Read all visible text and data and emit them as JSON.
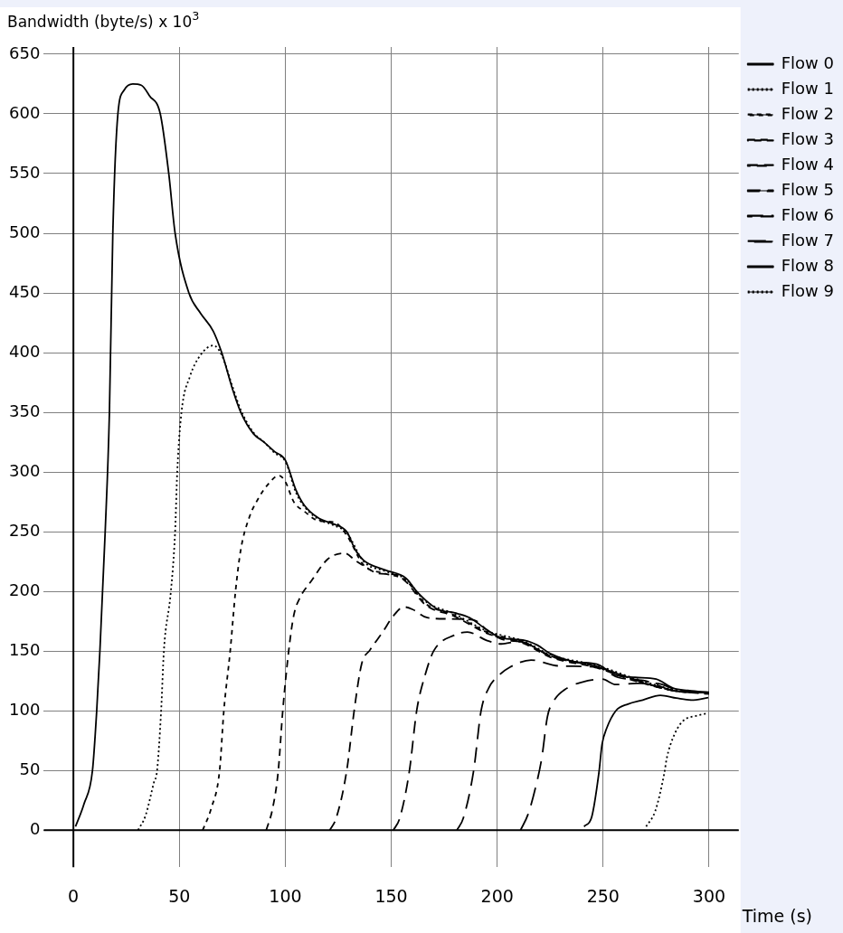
{
  "chart_data": {
    "type": "line",
    "xlabel": "Time (s)",
    "ylabel": "Bandwidth (byte/s) x 10$^{3}$",
    "xlim": [
      -14,
      314
    ],
    "ylim": [
      -31,
      656
    ],
    "xticks": [
      0,
      50,
      100,
      150,
      200,
      250,
      300
    ],
    "yticks": [
      0,
      50,
      100,
      150,
      200,
      250,
      300,
      350,
      400,
      450,
      500,
      550,
      600,
      650
    ],
    "grid": true,
    "legend": "top right",
    "marker": "none",
    "series": [
      {
        "name": "Flow 0",
        "color": "#000000",
        "line_style": "solid",
        "x": [
          1,
          5,
          9,
          11,
          12.5,
          15,
          17,
          18.6,
          21,
          24,
          28,
          32,
          36,
          41,
          45,
          48,
          54.5,
          60,
          66,
          70,
          75,
          79,
          85,
          90,
          95,
          100,
          105,
          109,
          116,
          122,
          129,
          133,
          137,
          147,
          157,
          162,
          166,
          172,
          180,
          187,
          195,
          202,
          213,
          219,
          225,
          237,
          247,
          256,
          265,
          275,
          283,
          290,
          300
        ],
        "values": [
          3,
          22,
          50,
          100,
          150,
          250,
          350,
          500,
          600,
          620,
          625,
          624,
          615,
          600,
          550,
          500,
          450,
          433,
          418,
          400,
          370,
          350,
          332,
          325,
          317,
          310,
          285,
          272,
          261,
          257,
          250,
          235,
          226,
          218,
          211,
          200,
          193,
          185,
          182,
          178,
          168,
          161,
          159,
          155,
          148,
          141,
          139,
          130,
          128,
          126.5,
          119,
          117,
          115.5
        ]
      },
      {
        "name": "Flow 1",
        "color": "#000000",
        "line_style": "dotted",
        "x": [
          30.5,
          34,
          38,
          39.5,
          41.4,
          42.7,
          46,
          48,
          49,
          51,
          55,
          60,
          66,
          70,
          75,
          79,
          85,
          90,
          95,
          100,
          105,
          109,
          116,
          122,
          129,
          137,
          147,
          157,
          166,
          180,
          195,
          213,
          225,
          247,
          265,
          283,
          300
        ],
        "values": [
          0,
          12,
          40,
          50,
          100,
          150,
          200,
          250,
          300,
          350,
          380,
          398,
          406,
          398,
          372,
          352,
          333,
          325,
          316,
          309,
          283,
          271,
          260,
          256,
          249,
          225,
          217,
          210,
          192,
          181,
          167,
          158,
          147,
          138,
          127,
          118,
          115
        ]
      },
      {
        "name": "Flow 2",
        "color": "#000000",
        "line_style": "dashed",
        "x": [
          61,
          65,
          69,
          71,
          74,
          76.5,
          79,
          83,
          87,
          92,
          97,
          100,
          104,
          109,
          116,
          123,
          129,
          137,
          147,
          157,
          166,
          180,
          195,
          213,
          225,
          247,
          265,
          283,
          300
        ],
        "values": [
          0,
          18,
          50,
          100,
          150,
          200,
          235,
          262,
          277,
          290,
          297,
          292,
          275,
          267,
          259,
          258,
          247,
          222,
          215,
          209,
          190,
          180,
          166,
          157,
          146,
          137,
          126,
          117,
          115
        ]
      },
      {
        "name": "Flow 3",
        "color": "#000000",
        "line_style": "dashed",
        "x": [
          91,
          94,
          96.7,
          98.8,
          101.6,
          104,
          107,
          112,
          120,
          128,
          133,
          137.4,
          144,
          151.7,
          157,
          166,
          180,
          195,
          213,
          225,
          247,
          265,
          283,
          300
        ],
        "values": [
          0,
          18,
          50,
          100,
          150,
          180,
          195,
          208,
          227,
          232,
          226,
          221,
          215,
          214,
          208,
          189,
          179,
          165,
          156,
          145,
          136,
          125,
          117,
          114
        ]
      },
      {
        "name": "Flow 4",
        "color": "#000000",
        "line_style": "dashed",
        "x": [
          121,
          124,
          129,
          132.5,
          136,
          140,
          146,
          151,
          156,
          160,
          167,
          176,
          189,
          195,
          202,
          213,
          225,
          247,
          265,
          283,
          300
        ],
        "values": [
          0,
          10,
          50,
          100,
          139,
          151,
          166,
          179.5,
          187,
          185,
          178,
          177,
          176,
          168,
          160,
          157,
          146,
          137,
          126,
          117,
          115
        ]
      },
      {
        "name": "Flow 5",
        "color": "#000000",
        "line_style": "dashed",
        "x": [
          151,
          154,
          158.6,
          162,
          166,
          170,
          180,
          186,
          195,
          202,
          210,
          213,
          225,
          247,
          265,
          283,
          300
        ],
        "values": [
          0,
          10,
          50,
          100,
          130,
          150,
          163.5,
          166,
          159,
          156,
          158,
          157,
          146,
          137,
          126,
          117,
          115
        ]
      },
      {
        "name": "Flow 6",
        "color": "#000000",
        "line_style": "dashed",
        "x": [
          181,
          184,
          188.9,
          192.4,
          196,
          201,
          206,
          216,
          229,
          247,
          257,
          270,
          283,
          300
        ],
        "values": [
          0,
          10,
          50,
          100,
          119,
          130,
          136.5,
          142.5,
          137.6,
          136.6,
          128,
          125,
          117,
          115
        ]
      },
      {
        "name": "Flow 7",
        "color": "#000000",
        "line_style": "dashed",
        "x": [
          211,
          214.5,
          218,
          221,
          223.7,
          226.6,
          233,
          240,
          249.5,
          256,
          266,
          275,
          286,
          300
        ],
        "values": [
          0,
          13,
          35,
          60,
          95,
          108,
          119,
          124,
          126.5,
          122,
          123,
          123,
          116.7,
          115
        ]
      },
      {
        "name": "Flow 8",
        "color": "#000000",
        "line_style": "solid",
        "x": [
          241,
          244.6,
          248,
          249.5,
          251.6,
          256,
          261.7,
          268.7,
          277,
          284.6,
          291.7,
          299.6
        ],
        "values": [
          3,
          11,
          48,
          72,
          85,
          100,
          105.6,
          109,
          113,
          110.6,
          109,
          111
        ]
      },
      {
        "name": "Flow 9",
        "color": "#000000",
        "line_style": "dotted",
        "x": [
          270.3,
          274.6,
          278.9,
          280,
          283,
          287.4,
          294.4,
          299.6
        ],
        "values": [
          3,
          16,
          48,
          60,
          77.5,
          91,
          96,
          98
        ]
      }
    ]
  }
}
